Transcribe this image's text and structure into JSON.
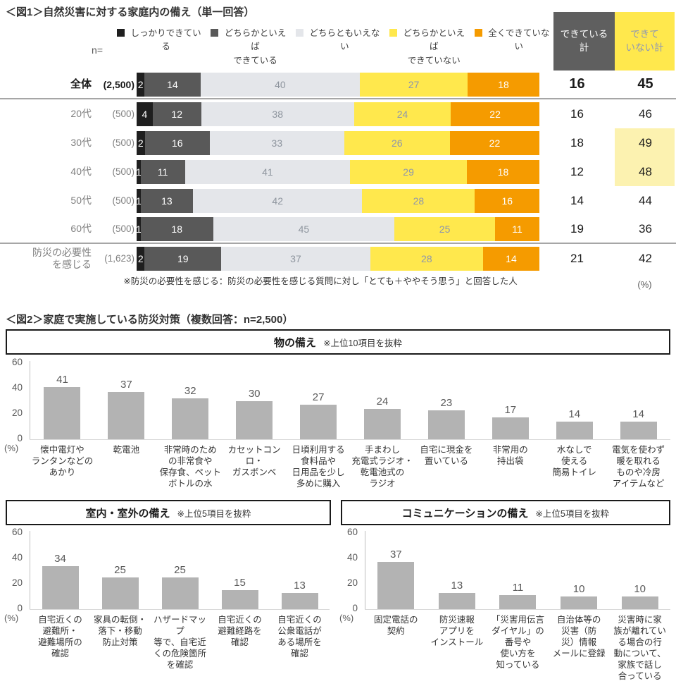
{
  "colors": {
    "seg_firm": "#1F1F1F",
    "seg_somewhat_done": "#595959",
    "seg_neither": "#E4E6EA",
    "seg_somewhat_not": "#FFE84D",
    "seg_not_at_all": "#F59B00",
    "done_header_bg": "#5F5F5F",
    "notdone_header_bg": "#FFE84D",
    "highlight_bg": "#FCF2B0",
    "fig2_bar": "#B3B3B3"
  },
  "fig1": {
    "title": "＜図1＞自然災害に対する家庭内の備え（単一回答）",
    "n_label": "n=",
    "legend": [
      {
        "label": "しっかりできている",
        "color": "#1F1F1F"
      },
      {
        "label": "どちらかといえば\nできている",
        "color": "#595959"
      },
      {
        "label": "どちらともいえない",
        "color": "#E4E6EA"
      },
      {
        "label": "どちらかといえば\nできていない",
        "color": "#FFE84D"
      },
      {
        "label": "全くできていない",
        "color": "#F59B00"
      }
    ],
    "col_done": "できている\n計",
    "col_notdone": "できて\nいない計",
    "rows": [
      {
        "label": "全体",
        "n": "(2,500)",
        "values": [
          2,
          14,
          40,
          27,
          18
        ],
        "done": 16,
        "notdone": 45,
        "bold": true,
        "sep_after": true
      },
      {
        "label": "20代",
        "n": "(500)",
        "values": [
          4,
          12,
          38,
          24,
          22
        ],
        "done": 16,
        "notdone": 46
      },
      {
        "label": "30代",
        "n": "(500)",
        "values": [
          2,
          16,
          33,
          26,
          22
        ],
        "done": 18,
        "notdone": 49,
        "hl": true
      },
      {
        "label": "40代",
        "n": "(500)",
        "values": [
          1,
          11,
          41,
          29,
          18
        ],
        "done": 12,
        "notdone": 48,
        "hl": true
      },
      {
        "label": "50代",
        "n": "(500)",
        "values": [
          1,
          13,
          42,
          28,
          16
        ],
        "done": 14,
        "notdone": 44
      },
      {
        "label": "60代",
        "n": "(500)",
        "values": [
          1,
          18,
          45,
          25,
          11
        ],
        "done": 19,
        "notdone": 36,
        "sep_after": true
      },
      {
        "label": "防災の必要性\nを感じる",
        "n": "(1,623)",
        "values": [
          2,
          19,
          37,
          28,
          14
        ],
        "done": 21,
        "notdone": 42
      }
    ],
    "footnote": "※防災の必要性を感じる：防災の必要性を感じる質問に対し「とても＋ややそう思う」と回答した人",
    "unit": "(%)"
  },
  "fig2": {
    "title": "＜図2＞家庭で実施している防災対策（複数回答：n=2,500）",
    "unit": "(%)",
    "charts": [
      {
        "header": "物の備え",
        "note": "※上位10項目を抜粋",
        "values": [
          41,
          37,
          32,
          30,
          27,
          24,
          23,
          17,
          14,
          14
        ],
        "labels": [
          "懐中電灯や\nランタンなどの\nあかり",
          "乾電池",
          "非常時のため\nの非常食や\n保存食、ペット\nボトルの水",
          "カセットコンロ・\nガスボンベ",
          "日頃利用する\n食料品や\n日用品を少し\n多めに購入",
          "手まわし\n充電式ラジオ・\n乾電池式の\nラジオ",
          "自宅に現金を\n置いている",
          "非常用の\n持出袋",
          "水なしで\n使える\n簡易トイレ",
          "電気を使わず\n暖を取れる\nものや冷房\nアイテムなど"
        ]
      },
      {
        "header": "室内・室外の備え",
        "note": "※上位5項目を抜粋",
        "values": [
          34,
          25,
          25,
          15,
          13
        ],
        "labels": [
          "自宅近くの\n避難所・\n避難場所の\n確認",
          "家具の転倒・\n落下・移動\n防止対策",
          "ハザードマップ\n等で、自宅近\nくの危険箇所\nを確認",
          "自宅近くの\n避難経路を\n確認",
          "自宅近くの\n公衆電話が\nある場所を\n確認"
        ]
      },
      {
        "header": "コミュニケーションの備え",
        "note": "※上位5項目を抜粋",
        "values": [
          37,
          13,
          11,
          10,
          10
        ],
        "labels": [
          "固定電話の\n契約",
          "防災速報\nアプリを\nインストール",
          "「災害用伝言\nダイヤル」の\n番号や\n使い方を\n知っている",
          "自治体等の\n災害（防\n災）情報\nメールに登録",
          "災害時に家\n族が離れてい\nる場合の行\n動について、\n家族で話し\n合っている"
        ]
      }
    ]
  },
  "chart_data": [
    {
      "type": "bar",
      "subtype": "horizontal-stacked",
      "title": "＜図1＞自然災害に対する家庭内の備え（単一回答）",
      "categories": [
        "全体 (2,500)",
        "20代 (500)",
        "30代 (500)",
        "40代 (500)",
        "50代 (500)",
        "60代 (500)",
        "防災の必要性を感じる (1,623)"
      ],
      "series": [
        {
          "name": "しっかりできている",
          "values": [
            2,
            4,
            2,
            1,
            1,
            1,
            2
          ]
        },
        {
          "name": "どちらかといえばできている",
          "values": [
            14,
            12,
            16,
            11,
            13,
            18,
            19
          ]
        },
        {
          "name": "どちらともいえない",
          "values": [
            40,
            38,
            33,
            41,
            42,
            45,
            37
          ]
        },
        {
          "name": "どちらかといえばできていない",
          "values": [
            27,
            24,
            26,
            29,
            28,
            25,
            28
          ]
        },
        {
          "name": "全くできていない",
          "values": [
            18,
            22,
            22,
            18,
            16,
            11,
            14
          ]
        }
      ],
      "totals": {
        "できている計": [
          16,
          16,
          18,
          12,
          14,
          19,
          21
        ],
        "できていない計": [
          45,
          46,
          49,
          48,
          44,
          36,
          42
        ]
      },
      "unit": "%",
      "legend_position": "top",
      "annotation": "※防災の必要性を感じる：防災の必要性を感じる質問に対し「とても＋ややそう思う」と回答した人"
    },
    {
      "type": "bar",
      "title": "物の備え ※上位10項目を抜粋",
      "categories": [
        "懐中電灯やランタンなどのあかり",
        "乾電池",
        "非常時のための非常食や保存食、ペットボトルの水",
        "カセットコンロ・ガスボンベ",
        "日頃利用する食料品や日用品を少し多めに購入",
        "手まわし充電式ラジオ・乾電池式のラジオ",
        "自宅に現金を置いている",
        "非常用の持出袋",
        "水なしで使える簡易トイレ",
        "電気を使わず暖を取れるものや冷房アイテムなど"
      ],
      "values": [
        41,
        37,
        32,
        30,
        27,
        24,
        23,
        17,
        14,
        14
      ],
      "xlabel": "",
      "ylabel": "(%)",
      "ylim": [
        0,
        60
      ],
      "yticks": [
        0,
        20,
        40,
        60
      ],
      "grid": false
    },
    {
      "type": "bar",
      "title": "室内・室外の備え ※上位5項目を抜粋",
      "categories": [
        "自宅近くの避難所・避難場所の確認",
        "家具の転倒・落下・移動防止対策",
        "ハザードマップ等で、自宅近くの危険箇所を確認",
        "自宅近くの避難経路を確認",
        "自宅近くの公衆電話がある場所を確認"
      ],
      "values": [
        34,
        25,
        25,
        15,
        13
      ],
      "xlabel": "",
      "ylabel": "(%)",
      "ylim": [
        0,
        60
      ],
      "yticks": [
        0,
        20,
        40,
        60
      ],
      "grid": false
    },
    {
      "type": "bar",
      "title": "コミュニケーションの備え ※上位5項目を抜粋",
      "categories": [
        "固定電話の契約",
        "防災速報アプリをインストール",
        "「災害用伝言ダイヤル」の番号や使い方を知っている",
        "自治体等の災害（防災）情報メールに登録",
        "災害時に家族が離れている場合の行動について、家族で話し合っている"
      ],
      "values": [
        37,
        13,
        11,
        10,
        10
      ],
      "xlabel": "",
      "ylabel": "(%)",
      "ylim": [
        0,
        60
      ],
      "yticks": [
        0,
        20,
        40,
        60
      ],
      "grid": false
    }
  ]
}
